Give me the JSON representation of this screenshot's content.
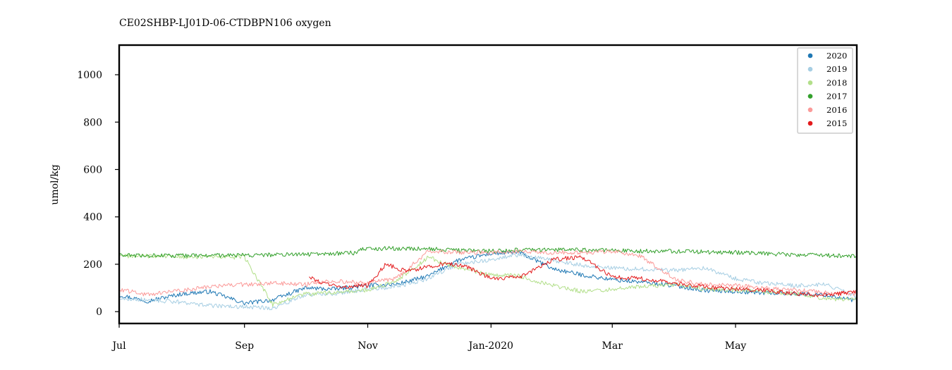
{
  "chart_data": {
    "type": "line",
    "title": "CE02SHBP-LJ01D-06-CTDBPN106 oxygen",
    "xlabel": "",
    "ylabel": "umol/kg",
    "xlim": [
      "2019-07-01",
      "2020-06-30"
    ],
    "ylim": [
      -50,
      1125
    ],
    "x_ticks": [
      {
        "date": "2019-07-01",
        "label": "Jul"
      },
      {
        "date": "2019-09-01",
        "label": "Sep"
      },
      {
        "date": "2019-11-01",
        "label": "Nov"
      },
      {
        "date": "2020-01-01",
        "label": "Jan-2020"
      },
      {
        "date": "2020-03-01",
        "label": "Mar"
      },
      {
        "date": "2020-05-01",
        "label": "May"
      }
    ],
    "y_ticks": [
      0,
      200,
      400,
      600,
      800,
      1000
    ],
    "grid": false,
    "legend_position": "top-right",
    "series": [
      {
        "name": "2020",
        "color": "#1f78b4",
        "points": [
          [
            "2019-07-01",
            70
          ],
          [
            "2019-07-15",
            45
          ],
          [
            "2019-08-01",
            75
          ],
          [
            "2019-08-15",
            85
          ],
          [
            "2019-09-01",
            35
          ],
          [
            "2019-09-15",
            50
          ],
          [
            "2019-10-01",
            100
          ],
          [
            "2019-10-15",
            95
          ],
          [
            "2019-11-01",
            110
          ],
          [
            "2019-11-15",
            115
          ],
          [
            "2019-12-01",
            150
          ],
          [
            "2019-12-15",
            215
          ],
          [
            "2020-01-01",
            245
          ],
          [
            "2020-01-15",
            250
          ],
          [
            "2020-02-01",
            180
          ],
          [
            "2020-02-15",
            155
          ],
          [
            "2020-03-01",
            135
          ],
          [
            "2020-03-15",
            125
          ],
          [
            "2020-04-01",
            110
          ],
          [
            "2020-04-15",
            90
          ],
          [
            "2020-05-01",
            85
          ],
          [
            "2020-05-15",
            80
          ],
          [
            "2020-06-01",
            75
          ],
          [
            "2020-06-15",
            70
          ],
          [
            "2020-06-30",
            45
          ]
        ]
      },
      {
        "name": "2019",
        "color": "#a6cee3",
        "points": [
          [
            "2019-07-01",
            55
          ],
          [
            "2019-07-15",
            50
          ],
          [
            "2019-08-01",
            40
          ],
          [
            "2019-08-15",
            25
          ],
          [
            "2019-09-01",
            20
          ],
          [
            "2019-09-15",
            15
          ],
          [
            "2019-10-01",
            70
          ],
          [
            "2019-10-15",
            75
          ],
          [
            "2019-11-01",
            95
          ],
          [
            "2019-11-15",
            105
          ],
          [
            "2019-12-01",
            140
          ],
          [
            "2019-12-15",
            200
          ],
          [
            "2020-01-01",
            220
          ],
          [
            "2020-01-15",
            240
          ],
          [
            "2020-02-01",
            215
          ],
          [
            "2020-02-15",
            195
          ],
          [
            "2020-03-01",
            185
          ],
          [
            "2020-03-15",
            180
          ],
          [
            "2020-04-01",
            175
          ],
          [
            "2020-04-15",
            185
          ],
          [
            "2020-05-01",
            140
          ],
          [
            "2020-05-15",
            120
          ],
          [
            "2020-06-01",
            110
          ],
          [
            "2020-06-15",
            115
          ],
          [
            "2020-06-30",
            60
          ]
        ]
      },
      {
        "name": "2018",
        "color": "#b2df8a",
        "points": [
          [
            "2019-07-01",
            235
          ],
          [
            "2019-07-15",
            235
          ],
          [
            "2019-08-01",
            232
          ],
          [
            "2019-08-15",
            230
          ],
          [
            "2019-09-01",
            230
          ],
          [
            "2019-09-15",
            30
          ],
          [
            "2019-10-01",
            75
          ],
          [
            "2019-10-15",
            80
          ],
          [
            "2019-11-01",
            90
          ],
          [
            "2019-11-15",
            130
          ],
          [
            "2019-12-01",
            230
          ],
          [
            "2019-12-15",
            185
          ],
          [
            "2020-01-01",
            155
          ],
          [
            "2020-01-15",
            150
          ],
          [
            "2020-02-01",
            110
          ],
          [
            "2020-02-15",
            85
          ],
          [
            "2020-03-01",
            95
          ],
          [
            "2020-03-15",
            105
          ],
          [
            "2020-04-01",
            115
          ],
          [
            "2020-04-15",
            95
          ],
          [
            "2020-05-01",
            90
          ],
          [
            "2020-05-15",
            85
          ],
          [
            "2020-06-01",
            75
          ],
          [
            "2020-06-15",
            55
          ],
          [
            "2020-06-30",
            50
          ]
        ]
      },
      {
        "name": "2017",
        "color": "#33a02c",
        "points": [
          [
            "2019-07-01",
            237
          ],
          [
            "2019-08-01",
            236
          ],
          [
            "2019-09-01",
            238
          ],
          [
            "2019-10-01",
            242
          ],
          [
            "2019-10-26",
            248
          ],
          [
            "2019-10-28",
            265
          ],
          [
            "2019-11-15",
            267
          ],
          [
            "2019-12-01",
            265
          ],
          [
            "2019-12-15",
            258
          ],
          [
            "2020-01-01",
            256
          ],
          [
            "2020-01-15",
            260
          ],
          [
            "2020-02-01",
            262
          ],
          [
            "2020-02-15",
            260
          ],
          [
            "2020-03-01",
            258
          ],
          [
            "2020-03-15",
            256
          ],
          [
            "2020-04-01",
            255
          ],
          [
            "2020-04-15",
            252
          ],
          [
            "2020-05-01",
            250
          ],
          [
            "2020-05-15",
            245
          ],
          [
            "2020-06-01",
            240
          ],
          [
            "2020-06-30",
            235
          ]
        ]
      },
      {
        "name": "2016",
        "color": "#fb9a99",
        "points": [
          [
            "2019-07-01",
            95
          ],
          [
            "2019-07-15",
            70
          ],
          [
            "2019-08-01",
            90
          ],
          [
            "2019-08-15",
            105
          ],
          [
            "2019-09-01",
            115
          ],
          [
            "2019-09-15",
            120
          ],
          [
            "2019-10-01",
            115
          ],
          [
            "2019-10-15",
            130
          ],
          [
            "2019-11-01",
            120
          ],
          [
            "2019-11-15",
            140
          ],
          [
            "2019-12-01",
            255
          ],
          [
            "2019-12-15",
            250
          ],
          [
            "2020-01-01",
            250
          ],
          [
            "2020-01-15",
            255
          ],
          [
            "2020-02-01",
            250
          ],
          [
            "2020-02-15",
            248
          ],
          [
            "2020-03-01",
            255
          ],
          [
            "2020-03-15",
            235
          ],
          [
            "2020-04-01",
            135
          ],
          [
            "2020-04-15",
            115
          ],
          [
            "2020-05-01",
            110
          ],
          [
            "2020-05-15",
            100
          ],
          [
            "2020-06-01",
            90
          ],
          [
            "2020-06-15",
            80
          ],
          [
            "2020-06-30",
            75
          ]
        ]
      },
      {
        "name": "2015",
        "color": "#e31a1c",
        "points": [
          [
            "2019-10-03",
            145
          ],
          [
            "2019-10-10",
            120
          ],
          [
            "2019-10-20",
            105
          ],
          [
            "2019-11-01",
            110
          ],
          [
            "2019-11-10",
            200
          ],
          [
            "2019-11-20",
            170
          ],
          [
            "2019-12-01",
            190
          ],
          [
            "2019-12-10",
            205
          ],
          [
            "2019-12-20",
            190
          ],
          [
            "2020-01-01",
            140
          ],
          [
            "2020-01-15",
            145
          ],
          [
            "2020-02-01",
            220
          ],
          [
            "2020-02-15",
            230
          ],
          [
            "2020-03-01",
            145
          ],
          [
            "2020-03-15",
            140
          ],
          [
            "2020-04-01",
            120
          ],
          [
            "2020-04-15",
            105
          ],
          [
            "2020-05-01",
            95
          ],
          [
            "2020-05-15",
            90
          ],
          [
            "2020-06-01",
            75
          ],
          [
            "2020-06-15",
            70
          ],
          [
            "2020-06-30",
            85
          ]
        ]
      }
    ]
  }
}
